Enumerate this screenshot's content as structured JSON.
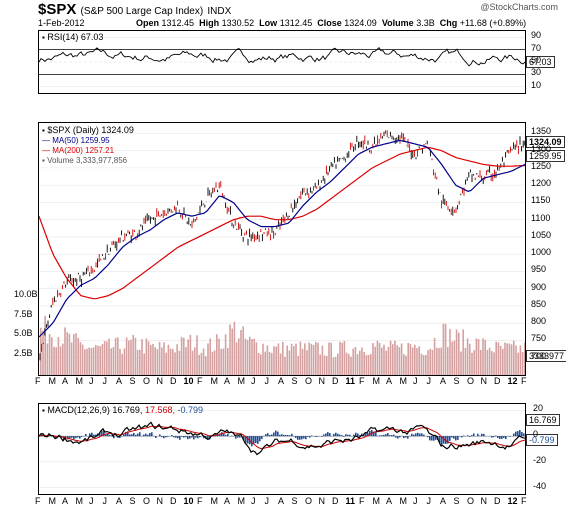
{
  "header": {
    "symbol": "$SPX",
    "name": "(S&P 500 Large Cap Index)",
    "exchange": "INDX",
    "date": "1-Feb-2012",
    "open_label": "Open",
    "open": "1312.45",
    "high_label": "High",
    "high": "1330.52",
    "low_label": "Low",
    "low": "1312.45",
    "close_label": "Close",
    "close": "1324.09",
    "volume_label": "Volume",
    "volume": "3.3B",
    "chg_label": "Chg",
    "chg": "+11.68 (+0.89%)",
    "watermark": "@StockCharts.com"
  },
  "chart_data": [
    {
      "type": "line",
      "panel": "RSI",
      "legend": "RSI(14) 67.03",
      "last_value": "67.03",
      "ylim": [
        0,
        100
      ],
      "yticks": [
        10,
        30,
        50,
        70,
        90
      ],
      "color": "#000000"
    },
    {
      "type": "line",
      "panel": "price",
      "legend_main": "$SPX (Daily) 1324.09",
      "legend_ma50": "MA(50) 1259.95",
      "legend_ma200": "MA(200) 1257.21",
      "legend_vol": "Volume 3,333,977,856",
      "price_flag": "1324.09",
      "ma50_flag": "1259.95",
      "vol_flag": "3333977",
      "ylim": [
        650,
        1380
      ],
      "yticks": [
        700,
        750,
        800,
        850,
        900,
        950,
        1000,
        1050,
        1100,
        1150,
        1200,
        1250,
        1300,
        1350
      ],
      "vol_ticks": [
        "2.5B",
        "5.0B",
        "7.5B",
        "10.0B"
      ],
      "vol_tick_values": [
        2.5,
        5.0,
        7.5,
        10.0
      ],
      "colors": {
        "price_up": "#000000",
        "price_down": "#cc0000",
        "ma50": "#00008b",
        "ma200": "#dd0000",
        "volume": "#d4a0a0"
      },
      "series": [
        {
          "name": "$SPX",
          "x": [
            "2009-03",
            "2009-04",
            "2009-05",
            "2009-06",
            "2009-07",
            "2009-08",
            "2009-09",
            "2009-10",
            "2009-11",
            "2009-12",
            "2010-01",
            "2010-02",
            "2010-03",
            "2010-04",
            "2010-05",
            "2010-06",
            "2010-07",
            "2010-08",
            "2010-09",
            "2010-10",
            "2010-11",
            "2010-12",
            "2011-01",
            "2011-02",
            "2011-03",
            "2011-04",
            "2011-05",
            "2011-06",
            "2011-07",
            "2011-08",
            "2011-09",
            "2011-10",
            "2011-11",
            "2011-12",
            "2012-01",
            "2012-02"
          ],
          "values": [
            700,
            860,
            920,
            930,
            960,
            1010,
            1050,
            1060,
            1100,
            1120,
            1140,
            1080,
            1160,
            1200,
            1090,
            1050,
            1060,
            1060,
            1120,
            1180,
            1190,
            1250,
            1280,
            1330,
            1310,
            1345,
            1340,
            1290,
            1320,
            1150,
            1130,
            1230,
            1220,
            1240,
            1300,
            1324
          ]
        },
        {
          "name": "MA(50)",
          "x": [
            "2009-03",
            "2009-04",
            "2009-05",
            "2009-06",
            "2009-07",
            "2009-08",
            "2009-09",
            "2009-10",
            "2009-11",
            "2009-12",
            "2010-01",
            "2010-02",
            "2010-03",
            "2010-04",
            "2010-05",
            "2010-06",
            "2010-07",
            "2010-08",
            "2010-09",
            "2010-10",
            "2010-11",
            "2010-12",
            "2011-01",
            "2011-02",
            "2011-03",
            "2011-04",
            "2011-05",
            "2011-06",
            "2011-07",
            "2011-08",
            "2011-09",
            "2011-10",
            "2011-11",
            "2011-12",
            "2012-01",
            "2012-02"
          ],
          "values": [
            760,
            800,
            870,
            910,
            930,
            970,
            1020,
            1050,
            1070,
            1100,
            1120,
            1110,
            1120,
            1170,
            1150,
            1100,
            1080,
            1080,
            1090,
            1140,
            1180,
            1210,
            1250,
            1290,
            1310,
            1320,
            1330,
            1320,
            1310,
            1260,
            1200,
            1180,
            1220,
            1230,
            1240,
            1260
          ]
        },
        {
          "name": "MA(200)",
          "x": [
            "2009-03",
            "2009-04",
            "2009-05",
            "2009-06",
            "2009-07",
            "2009-08",
            "2009-09",
            "2009-10",
            "2009-11",
            "2009-12",
            "2010-01",
            "2010-02",
            "2010-03",
            "2010-04",
            "2010-05",
            "2010-06",
            "2010-07",
            "2010-08",
            "2010-09",
            "2010-10",
            "2010-11",
            "2010-12",
            "2011-01",
            "2011-02",
            "2011-03",
            "2011-04",
            "2011-05",
            "2011-06",
            "2011-07",
            "2011-08",
            "2011-09",
            "2011-10",
            "2011-11",
            "2011-12",
            "2012-01",
            "2012-02"
          ],
          "values": [
            1110,
            1000,
            930,
            880,
            870,
            880,
            900,
            930,
            960,
            990,
            1020,
            1040,
            1060,
            1080,
            1100,
            1110,
            1110,
            1100,
            1100,
            1110,
            1130,
            1160,
            1190,
            1220,
            1250,
            1270,
            1290,
            1300,
            1310,
            1300,
            1280,
            1270,
            1260,
            1255,
            1255,
            1257
          ]
        }
      ],
      "volume_values": [
        7.0,
        6.5,
        5.5,
        4.5,
        4.0,
        4.2,
        4.5,
        4.8,
        4.2,
        4.0,
        4.5,
        5.0,
        4.2,
        5.0,
        7.0,
        5.0,
        4.5,
        4.0,
        4.0,
        4.0,
        4.0,
        3.8,
        4.0,
        4.2,
        4.5,
        4.0,
        4.0,
        4.5,
        4.2,
        6.5,
        5.5,
        5.0,
        4.5,
        4.0,
        4.0,
        4.0
      ]
    },
    {
      "type": "line",
      "panel": "MACD",
      "legend_label": "MACD(12,26,9)",
      "legend_macd": "16.769,",
      "legend_signal": "17.568,",
      "legend_hist": "-0.799",
      "macd_flag": "16.769",
      "hist_flag": "-0.799",
      "ylim": [
        -45,
        25
      ],
      "yticks": [
        -40,
        -20,
        0,
        20
      ],
      "colors": {
        "macd": "#000000",
        "signal": "#cc0000",
        "histogram": "#1f4e99"
      }
    }
  ],
  "months": [
    "F",
    "M",
    "A",
    "M",
    "J",
    "J",
    "A",
    "S",
    "O",
    "N",
    "D",
    "10",
    "F",
    "M",
    "A",
    "M",
    "J",
    "J",
    "A",
    "S",
    "O",
    "N",
    "D",
    "11",
    "F",
    "M",
    "A",
    "M",
    "J",
    "J",
    "A",
    "S",
    "O",
    "N",
    "D",
    "12",
    "F"
  ]
}
